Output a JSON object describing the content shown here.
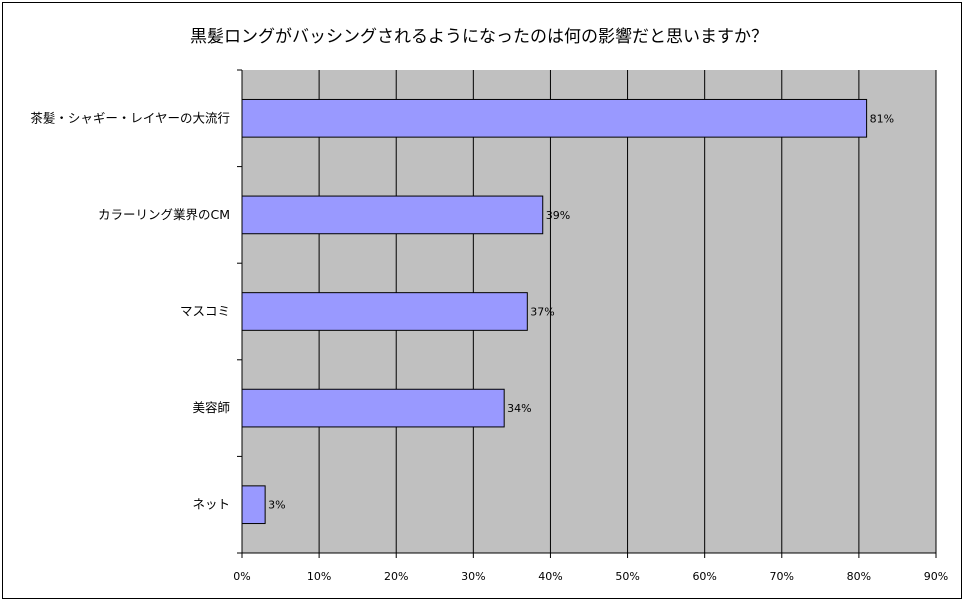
{
  "chart_data": {
    "type": "bar",
    "orientation": "horizontal",
    "title": "黒髪ロングがバッシングされるようになったのは何の影響だと思いますか？",
    "categories": [
      "茶髪・シャギー・レイヤーの大流行",
      "カラーリング業界のCM",
      "マスコミ",
      "美容師",
      "ネット"
    ],
    "values": [
      81,
      39,
      37,
      34,
      3
    ],
    "data_labels": [
      "81%",
      "39%",
      "37%",
      "34%",
      "3%"
    ],
    "xlim": [
      0,
      90
    ],
    "x_ticks": [
      "0%",
      "10%",
      "20%",
      "30%",
      "40%",
      "50%",
      "60%",
      "70%",
      "80%",
      "90%"
    ],
    "xlabel": "",
    "ylabel": "",
    "grid": true,
    "legend": "none",
    "colors": {
      "bar_fill": "#9999FF",
      "bar_stroke": "#000000",
      "plot_bg": "#C0C0C0",
      "grid": "#000000"
    }
  }
}
